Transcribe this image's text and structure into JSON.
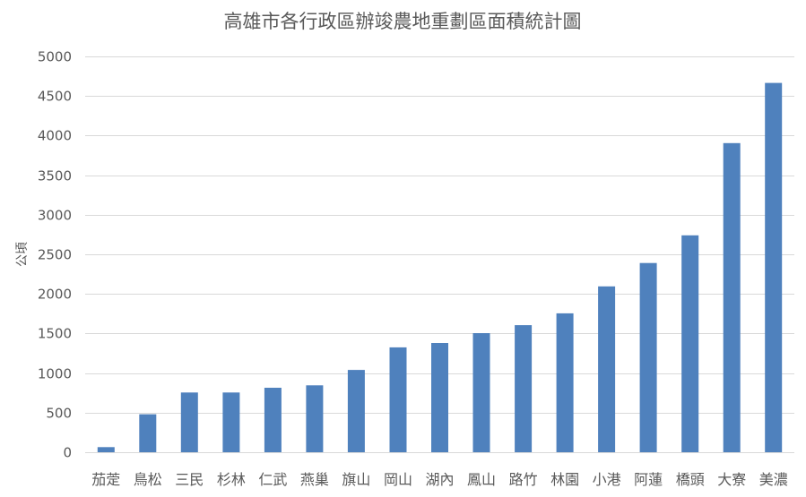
{
  "chart_data": {
    "type": "bar",
    "title": "高雄市各行政區辦竣農地重劃區面積統計圖",
    "xlabel": "",
    "ylabel": "公頃",
    "ylim": [
      0,
      5000
    ],
    "yticks": [
      0,
      500,
      1000,
      1500,
      2000,
      2500,
      3000,
      3500,
      4000,
      4500,
      5000
    ],
    "grid": true,
    "legend": "none",
    "categories": [
      "茄萣",
      "鳥松",
      "三民",
      "杉林",
      "仁武",
      "燕巢",
      "旗山",
      "岡山",
      "湖內",
      "鳳山",
      "路竹",
      "林園",
      "小港",
      "阿蓮",
      "橋頭",
      "大寮",
      "美濃"
    ],
    "values": [
      65,
      480,
      755,
      755,
      815,
      845,
      1040,
      1325,
      1380,
      1505,
      1605,
      1755,
      2095,
      2390,
      2740,
      3905,
      4665
    ],
    "colors": {
      "bar": "#4f81bd",
      "grid": "#d9d9d9",
      "text": "#595959"
    }
  }
}
